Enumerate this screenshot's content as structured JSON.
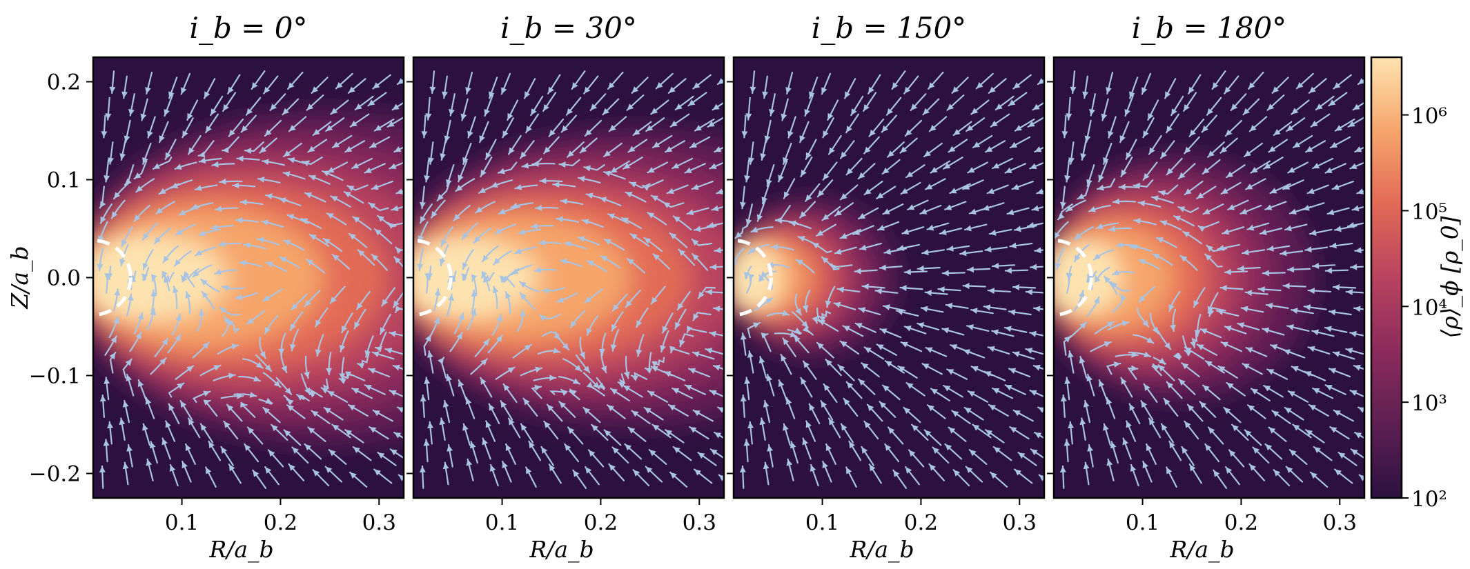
{
  "chart_data": {
    "type": "heatmap",
    "panels": [
      {
        "title": "i_b = 0°",
        "shape": {
          "core_extent": 0.285,
          "core_halfwidth": 0.095,
          "cap_r": 0.06
        }
      },
      {
        "title": "i_b = 30°",
        "shape": {
          "core_extent": 0.27,
          "core_halfwidth": 0.085,
          "cap_r": 0.065
        }
      },
      {
        "title": "i_b = 150°",
        "shape": {
          "core_extent": 0.1,
          "core_halfwidth": 0.045,
          "cap_r": 0.035
        }
      },
      {
        "title": "i_b = 180°",
        "shape": {
          "core_extent": 0.155,
          "core_halfwidth": 0.07,
          "cap_r": 0.045
        }
      }
    ],
    "xlabel": "R/a_b",
    "ylabel": "Z/a_b",
    "x_ticks": [
      0.1,
      0.2,
      0.3
    ],
    "x_tick_labels": [
      "0.1",
      "0.2",
      "0.3"
    ],
    "y_ticks": [
      0.2,
      0.1,
      0.0,
      -0.1,
      -0.2
    ],
    "y_tick_labels": [
      "0.2",
      "0.1",
      "0.0",
      "−0.1",
      "−0.2"
    ],
    "xlim": [
      0.01,
      0.325
    ],
    "ylim": [
      -0.225,
      0.225
    ],
    "colorbar": {
      "label": "⟨ρ⟩_ϕ [ρ_0]",
      "scale": "log",
      "range": [
        100,
        4000000
      ],
      "ticks": [
        100,
        1000,
        10000,
        100000,
        1000000
      ],
      "tick_labels": [
        "10²",
        "10³",
        "10⁴",
        "10⁵",
        "10⁶"
      ],
      "colormap": [
        "#2c1140",
        "#5e1f52",
        "#8b2b5c",
        "#b8435f",
        "#e26a57",
        "#f6a56b",
        "#fde3b0"
      ]
    },
    "overlays": {
      "streamline_color": "#a9c3e2",
      "sink_circle_radius": 0.038,
      "sink_circle_color": "#ffffff"
    }
  }
}
